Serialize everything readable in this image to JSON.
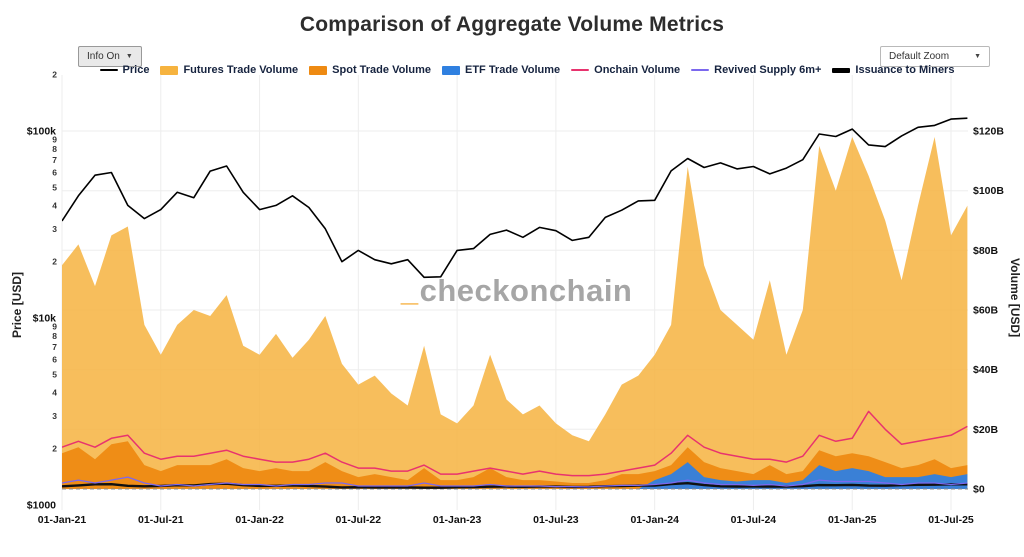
{
  "title": "Comparison of Aggregate Volume Metrics",
  "controls": {
    "info_label": "Info On",
    "zoom_label": "Default Zoom",
    "caret": "▼"
  },
  "watermark": {
    "underscore": "_",
    "text": "checkonchain"
  },
  "axes": {
    "left_label": "Price [USD]",
    "right_label": "Volume [USD]",
    "price_major_ticks": [
      {
        "v": 100000,
        "label": "$100k"
      },
      {
        "v": 10000,
        "label": "$10k"
      },
      {
        "v": 1000,
        "label": "$1000"
      }
    ],
    "price_minor_ticks": [
      {
        "v": 200000,
        "label": "2"
      },
      {
        "v": 90000,
        "label": "9"
      },
      {
        "v": 80000,
        "label": "8"
      },
      {
        "v": 70000,
        "label": "7"
      },
      {
        "v": 60000,
        "label": "6"
      },
      {
        "v": 50000,
        "label": "5"
      },
      {
        "v": 40000,
        "label": "4"
      },
      {
        "v": 30000,
        "label": "3"
      },
      {
        "v": 20000,
        "label": "2"
      },
      {
        "v": 9000,
        "label": "9"
      },
      {
        "v": 8000,
        "label": "8"
      },
      {
        "v": 7000,
        "label": "7"
      },
      {
        "v": 6000,
        "label": "6"
      },
      {
        "v": 5000,
        "label": "5"
      },
      {
        "v": 4000,
        "label": "4"
      },
      {
        "v": 3000,
        "label": "3"
      },
      {
        "v": 2000,
        "label": "2"
      }
    ],
    "volume_ticks": [
      {
        "v": 0,
        "label": "$0"
      },
      {
        "v": 20,
        "label": "$20B"
      },
      {
        "v": 40,
        "label": "$40B"
      },
      {
        "v": 60,
        "label": "$60B"
      },
      {
        "v": 80,
        "label": "$80B"
      },
      {
        "v": 100,
        "label": "$100B"
      },
      {
        "v": 120,
        "label": "$120B"
      }
    ],
    "x_ticks": [
      {
        "t": 2021.0,
        "label": "01-Jan-21"
      },
      {
        "t": 2021.5,
        "label": "01-Jul-21"
      },
      {
        "t": 2022.0,
        "label": "01-Jan-22"
      },
      {
        "t": 2022.5,
        "label": "01-Jul-22"
      },
      {
        "t": 2023.0,
        "label": "01-Jan-23"
      },
      {
        "t": 2023.5,
        "label": "01-Jul-23"
      },
      {
        "t": 2024.0,
        "label": "01-Jan-24"
      },
      {
        "t": 2024.5,
        "label": "01-Jul-24"
      },
      {
        "t": 2025.0,
        "label": "01-Jan-25"
      },
      {
        "t": 2025.5,
        "label": "01-Jul-25"
      }
    ]
  },
  "legend": [
    {
      "label": "Price",
      "color": "#000000",
      "swatch": 2
    },
    {
      "label": "Futures Trade Volume",
      "color": "#f6b33f",
      "swatch": 9
    },
    {
      "label": "Spot Trade Volume",
      "color": "#ee8a12",
      "swatch": 9
    },
    {
      "label": "ETF Trade Volume",
      "color": "#2f80e0",
      "swatch": 9
    },
    {
      "label": "Onchain Volume",
      "color": "#e8336e",
      "swatch": 2
    },
    {
      "label": "Revived Supply 6m+",
      "color": "#7b68ee",
      "swatch": 2
    },
    {
      "label": "Issuance to Miners",
      "color": "#000000",
      "swatch": 5
    }
  ],
  "chart_data": {
    "type": "mixed",
    "x_unit": "decimal_year",
    "price_axis": {
      "scale": "log",
      "range": [
        1000,
        200000
      ],
      "unit": "USD"
    },
    "volume_axis": {
      "scale": "linear",
      "range": [
        0,
        120
      ],
      "unit": "billions USD"
    },
    "x": [
      2021.0,
      2021.083,
      2021.167,
      2021.25,
      2021.333,
      2021.417,
      2021.5,
      2021.583,
      2021.667,
      2021.75,
      2021.833,
      2021.917,
      2022.0,
      2022.083,
      2022.167,
      2022.25,
      2022.333,
      2022.417,
      2022.5,
      2022.583,
      2022.667,
      2022.75,
      2022.833,
      2022.917,
      2023.0,
      2023.083,
      2023.167,
      2023.25,
      2023.333,
      2023.417,
      2023.5,
      2023.583,
      2023.667,
      2023.75,
      2023.833,
      2023.917,
      2024.0,
      2024.083,
      2024.167,
      2024.25,
      2024.333,
      2024.417,
      2024.5,
      2024.583,
      2024.667,
      2024.75,
      2024.833,
      2024.917,
      2025.0,
      2025.083,
      2025.167,
      2025.25,
      2025.333,
      2025.417,
      2025.5,
      2025.583
    ],
    "series": [
      {
        "name": "Futures Trade Volume",
        "type": "area",
        "axis": "volume",
        "color": "#f6b33f",
        "opacity": 0.85,
        "values": [
          75,
          82,
          68,
          85,
          88,
          55,
          45,
          55,
          60,
          58,
          65,
          48,
          45,
          52,
          44,
          50,
          58,
          42,
          35,
          38,
          32,
          28,
          48,
          25,
          22,
          28,
          45,
          30,
          25,
          28,
          22,
          18,
          16,
          25,
          35,
          38,
          45,
          55,
          108,
          75,
          60,
          55,
          50,
          70,
          45,
          60,
          115,
          100,
          118,
          105,
          90,
          70,
          95,
          118,
          85,
          95
        ]
      },
      {
        "name": "Spot Trade Volume",
        "type": "area",
        "axis": "volume",
        "color": "#ee8a12",
        "opacity": 0.95,
        "values": [
          12,
          14,
          10,
          15,
          16,
          8,
          6,
          8,
          8,
          8,
          10,
          7,
          6,
          7,
          6,
          6,
          9,
          6,
          4,
          5,
          4,
          3,
          7,
          3,
          3,
          4,
          7,
          4,
          3,
          3,
          2.5,
          2,
          2,
          3,
          5,
          5,
          6,
          8,
          14,
          9,
          7,
          6,
          5,
          8,
          5,
          6,
          13,
          11,
          12,
          11,
          9,
          7,
          8,
          10,
          7,
          8
        ]
      },
      {
        "name": "ETF Trade Volume",
        "type": "area",
        "axis": "volume",
        "color": "#2f80e0",
        "opacity": 0.95,
        "values": [
          0,
          0,
          0,
          0,
          0,
          0,
          0,
          0,
          0,
          0,
          0,
          0,
          0,
          0,
          0,
          0,
          0,
          0,
          0,
          0,
          0,
          0,
          0,
          0,
          0,
          0,
          0,
          0,
          0,
          0,
          0,
          0,
          0,
          0,
          0,
          0,
          3,
          5,
          9,
          4,
          3,
          2.5,
          3,
          3,
          2,
          3,
          8,
          6,
          7,
          6,
          4,
          4,
          4,
          5,
          4,
          5
        ]
      },
      {
        "name": "Issuance to Miners",
        "type": "line",
        "axis": "volume",
        "color": "#111111",
        "width": 2.4,
        "values": [
          0.89,
          1.22,
          1.57,
          1.62,
          1.08,
          0.92,
          1.03,
          1.27,
          1.19,
          1.65,
          1.76,
          1.27,
          1.03,
          1.08,
          1.22,
          1.05,
          0.81,
          0.54,
          0.62,
          0.55,
          0.53,
          0.55,
          0.45,
          0.45,
          0.62,
          0.63,
          0.76,
          0.8,
          0.73,
          0.82,
          0.79,
          0.7,
          0.73,
          0.93,
          1.02,
          1.14,
          1.15,
          1.65,
          1.93,
          1.3,
          0.91,
          0.85,
          0.87,
          0.8,
          0.85,
          0.95,
          1.3,
          1.26,
          1.38,
          1.14,
          1.11,
          1.27,
          1.41,
          1.45,
          1.56,
          1.58
        ]
      },
      {
        "name": "Revived Supply 6m+",
        "type": "line",
        "axis": "volume",
        "color": "#7b68ee",
        "width": 1.3,
        "values": [
          2,
          3,
          2,
          3,
          4,
          2,
          1,
          1.5,
          1,
          1.5,
          2,
          1.5,
          1.5,
          1,
          1.5,
          1.5,
          2,
          2,
          1,
          1,
          1,
          1,
          2,
          1,
          1,
          1,
          1.5,
          1,
          1,
          1,
          0.8,
          0.8,
          0.7,
          1,
          1.2,
          1.2,
          1.5,
          2,
          3,
          2,
          1.5,
          1.5,
          1.2,
          1.5,
          1,
          1.5,
          3,
          2.5,
          2.5,
          2.5,
          2,
          1.5,
          2,
          2,
          1.5,
          2
        ]
      },
      {
        "name": "Onchain Volume",
        "type": "line",
        "axis": "volume",
        "color": "#e8336e",
        "width": 1.5,
        "values": [
          14,
          16,
          14,
          17,
          18,
          12,
          10,
          11,
          11,
          12,
          13,
          11,
          10,
          9,
          9,
          10,
          12,
          9,
          7,
          7,
          6,
          6,
          8,
          5,
          5,
          6,
          7,
          6,
          5,
          6,
          5,
          4.5,
          4.5,
          5,
          6,
          7,
          8,
          12,
          18,
          14,
          12,
          11,
          10,
          10,
          9,
          11,
          18,
          16,
          17,
          26,
          20,
          15,
          16,
          17,
          18,
          21
        ]
      },
      {
        "name": "Price",
        "type": "line",
        "axis": "price",
        "color": "#000000",
        "width": 1.6,
        "values": [
          33000,
          45000,
          58000,
          60000,
          40000,
          34000,
          38000,
          47000,
          44000,
          61000,
          65000,
          47000,
          38000,
          40000,
          45000,
          39000,
          30000,
          20000,
          23000,
          20500,
          19500,
          20500,
          16500,
          16600,
          23000,
          23500,
          28000,
          29500,
          27000,
          30500,
          29300,
          26000,
          27000,
          34500,
          37700,
          42300,
          42600,
          61200,
          71300,
          63800,
          67500,
          62700,
          64600,
          59000,
          63300,
          70200,
          96400,
          93400,
          102400,
          84300,
          82500,
          94200,
          104600,
          107100,
          115800,
          117000
        ]
      }
    ]
  }
}
